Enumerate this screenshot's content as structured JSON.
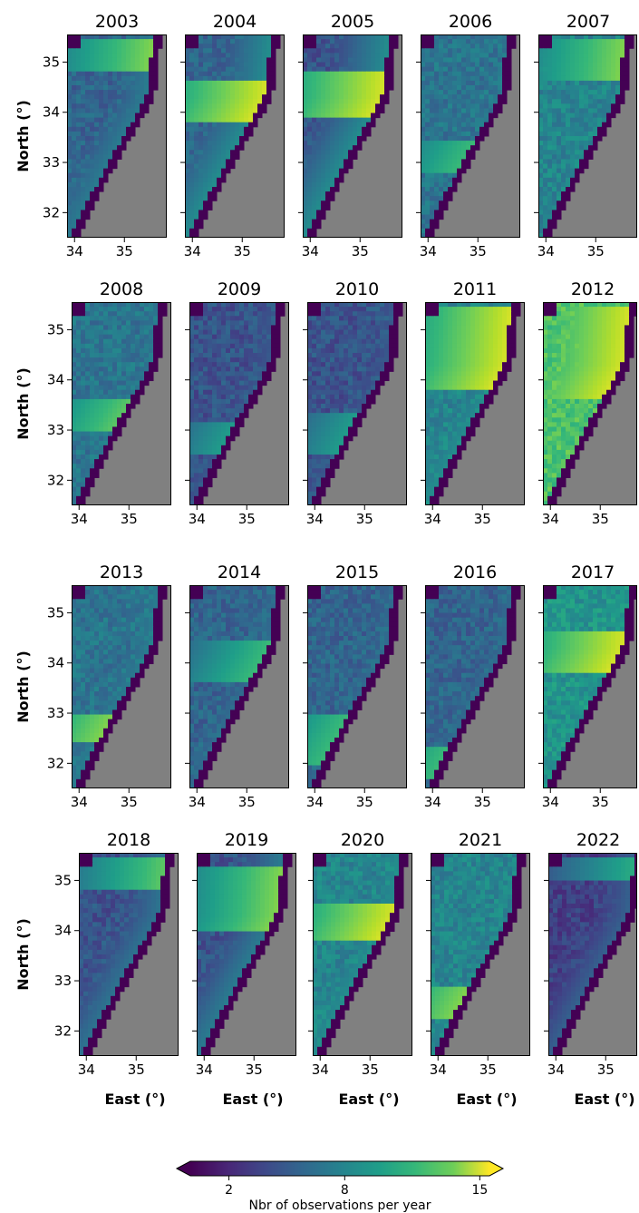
{
  "chart_data": {
    "type": "heatmap",
    "panel_titles": [
      "2003",
      "2004",
      "2005",
      "2006",
      "2007",
      "2008",
      "2009",
      "2010",
      "2011",
      "2012",
      "2013",
      "2014",
      "2015",
      "2016",
      "2017",
      "2018",
      "2019",
      "2020",
      "2021",
      "2022"
    ],
    "xlabel": "East (°)",
    "ylabel": "North (°)",
    "xticks": [
      "34",
      "35"
    ],
    "yticks": [
      "35",
      "34",
      "33",
      "32"
    ],
    "xlim": [
      33.85,
      35.85
    ],
    "ylim": [
      31.5,
      35.55
    ],
    "colorbar": {
      "label": "Nbr of observations per year",
      "ticks": [
        "2",
        "8",
        "15"
      ],
      "tick_values": [
        2,
        8,
        15
      ],
      "range": [
        0,
        15.5
      ],
      "extend": "both",
      "colormap": "viridis"
    },
    "land_color": "#808080",
    "nodata_color": "#440154",
    "panels": [
      {
        "year": "2003",
        "high_lat": [
          34.8,
          35.5
        ],
        "peak": 13,
        "base": 5
      },
      {
        "year": "2004",
        "high_lat": [
          33.8,
          34.6
        ],
        "peak": 15,
        "base": 5
      },
      {
        "year": "2005",
        "high_lat": [
          33.9,
          34.8
        ],
        "peak": 15,
        "base": 4
      },
      {
        "year": "2006",
        "high_lat": [
          32.8,
          33.4
        ],
        "peak": 11,
        "base": 6
      },
      {
        "year": "2007",
        "high_lat": [
          34.6,
          35.5
        ],
        "peak": 13,
        "base": 7
      },
      {
        "year": "2008",
        "high_lat": [
          33.0,
          33.6
        ],
        "peak": 12,
        "base": 6
      },
      {
        "year": "2009",
        "high_lat": [
          32.5,
          33.2
        ],
        "peak": 9,
        "base": 4
      },
      {
        "year": "2010",
        "high_lat": [
          32.5,
          33.3
        ],
        "peak": 9,
        "base": 4
      },
      {
        "year": "2011",
        "high_lat": [
          33.8,
          35.5
        ],
        "peak": 15,
        "base": 7
      },
      {
        "year": "2012",
        "high_lat": [
          33.6,
          35.5
        ],
        "peak": 15,
        "base": 11
      },
      {
        "year": "2013",
        "high_lat": [
          32.4,
          33.0
        ],
        "peak": 13,
        "base": 6
      },
      {
        "year": "2014",
        "high_lat": [
          33.6,
          34.4
        ],
        "peak": 11,
        "base": 5
      },
      {
        "year": "2015",
        "high_lat": [
          32.0,
          33.0
        ],
        "peak": 11,
        "base": 5
      },
      {
        "year": "2016",
        "high_lat": [
          31.7,
          32.3
        ],
        "peak": 11,
        "base": 5
      },
      {
        "year": "2017",
        "high_lat": [
          33.8,
          34.6
        ],
        "peak": 15,
        "base": 8
      },
      {
        "year": "2018",
        "high_lat": [
          34.8,
          35.5
        ],
        "peak": 12,
        "base": 4
      },
      {
        "year": "2019",
        "high_lat": [
          34.0,
          35.3
        ],
        "peak": 13,
        "base": 4
      },
      {
        "year": "2020",
        "high_lat": [
          33.8,
          34.5
        ],
        "peak": 15,
        "base": 7
      },
      {
        "year": "2021",
        "high_lat": [
          32.2,
          32.9
        ],
        "peak": 13,
        "base": 7
      },
      {
        "year": "2022",
        "high_lat": [
          35.0,
          35.5
        ],
        "peak": 10,
        "base": 3
      }
    ]
  }
}
